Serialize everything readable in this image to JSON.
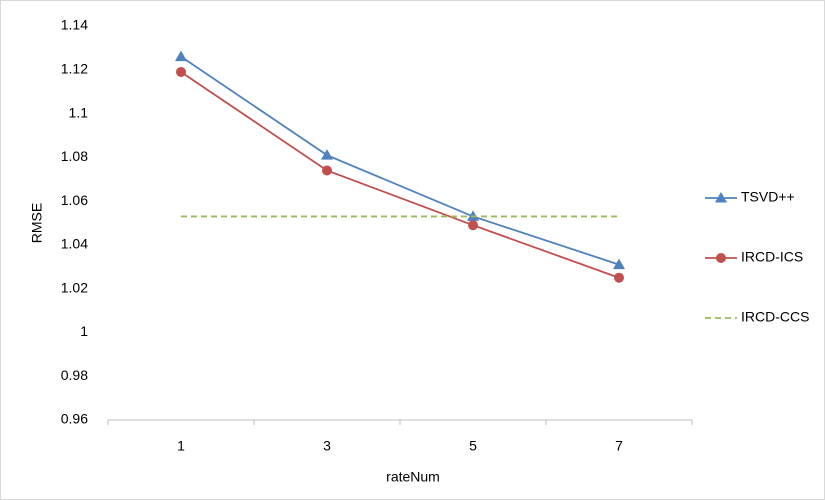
{
  "chart_data": {
    "type": "line",
    "categories": [
      "1",
      "3",
      "5",
      "7"
    ],
    "x_label": "rateNum",
    "y_label": "RMSE",
    "ylim": [
      0.96,
      1.14
    ],
    "yticks": [
      0.96,
      0.98,
      1,
      1.02,
      1.04,
      1.06,
      1.08,
      1.1,
      1.12,
      1.14
    ],
    "grid": false,
    "legend": "right",
    "series": [
      {
        "name": "TSVD++",
        "color": "#4f81bd",
        "marker": "triangle",
        "dashed": false,
        "values": [
          1.126,
          1.081,
          1.053,
          1.031
        ]
      },
      {
        "name": "IRCD-ICS",
        "color": "#c0504d",
        "marker": "circle",
        "dashed": false,
        "values": [
          1.119,
          1.074,
          1.049,
          1.025
        ]
      },
      {
        "name": "IRCD-CCS",
        "color": "#9bbb59",
        "marker": "none",
        "dashed": true,
        "values": [
          1.053,
          1.053,
          1.053,
          1.053
        ]
      }
    ]
  }
}
